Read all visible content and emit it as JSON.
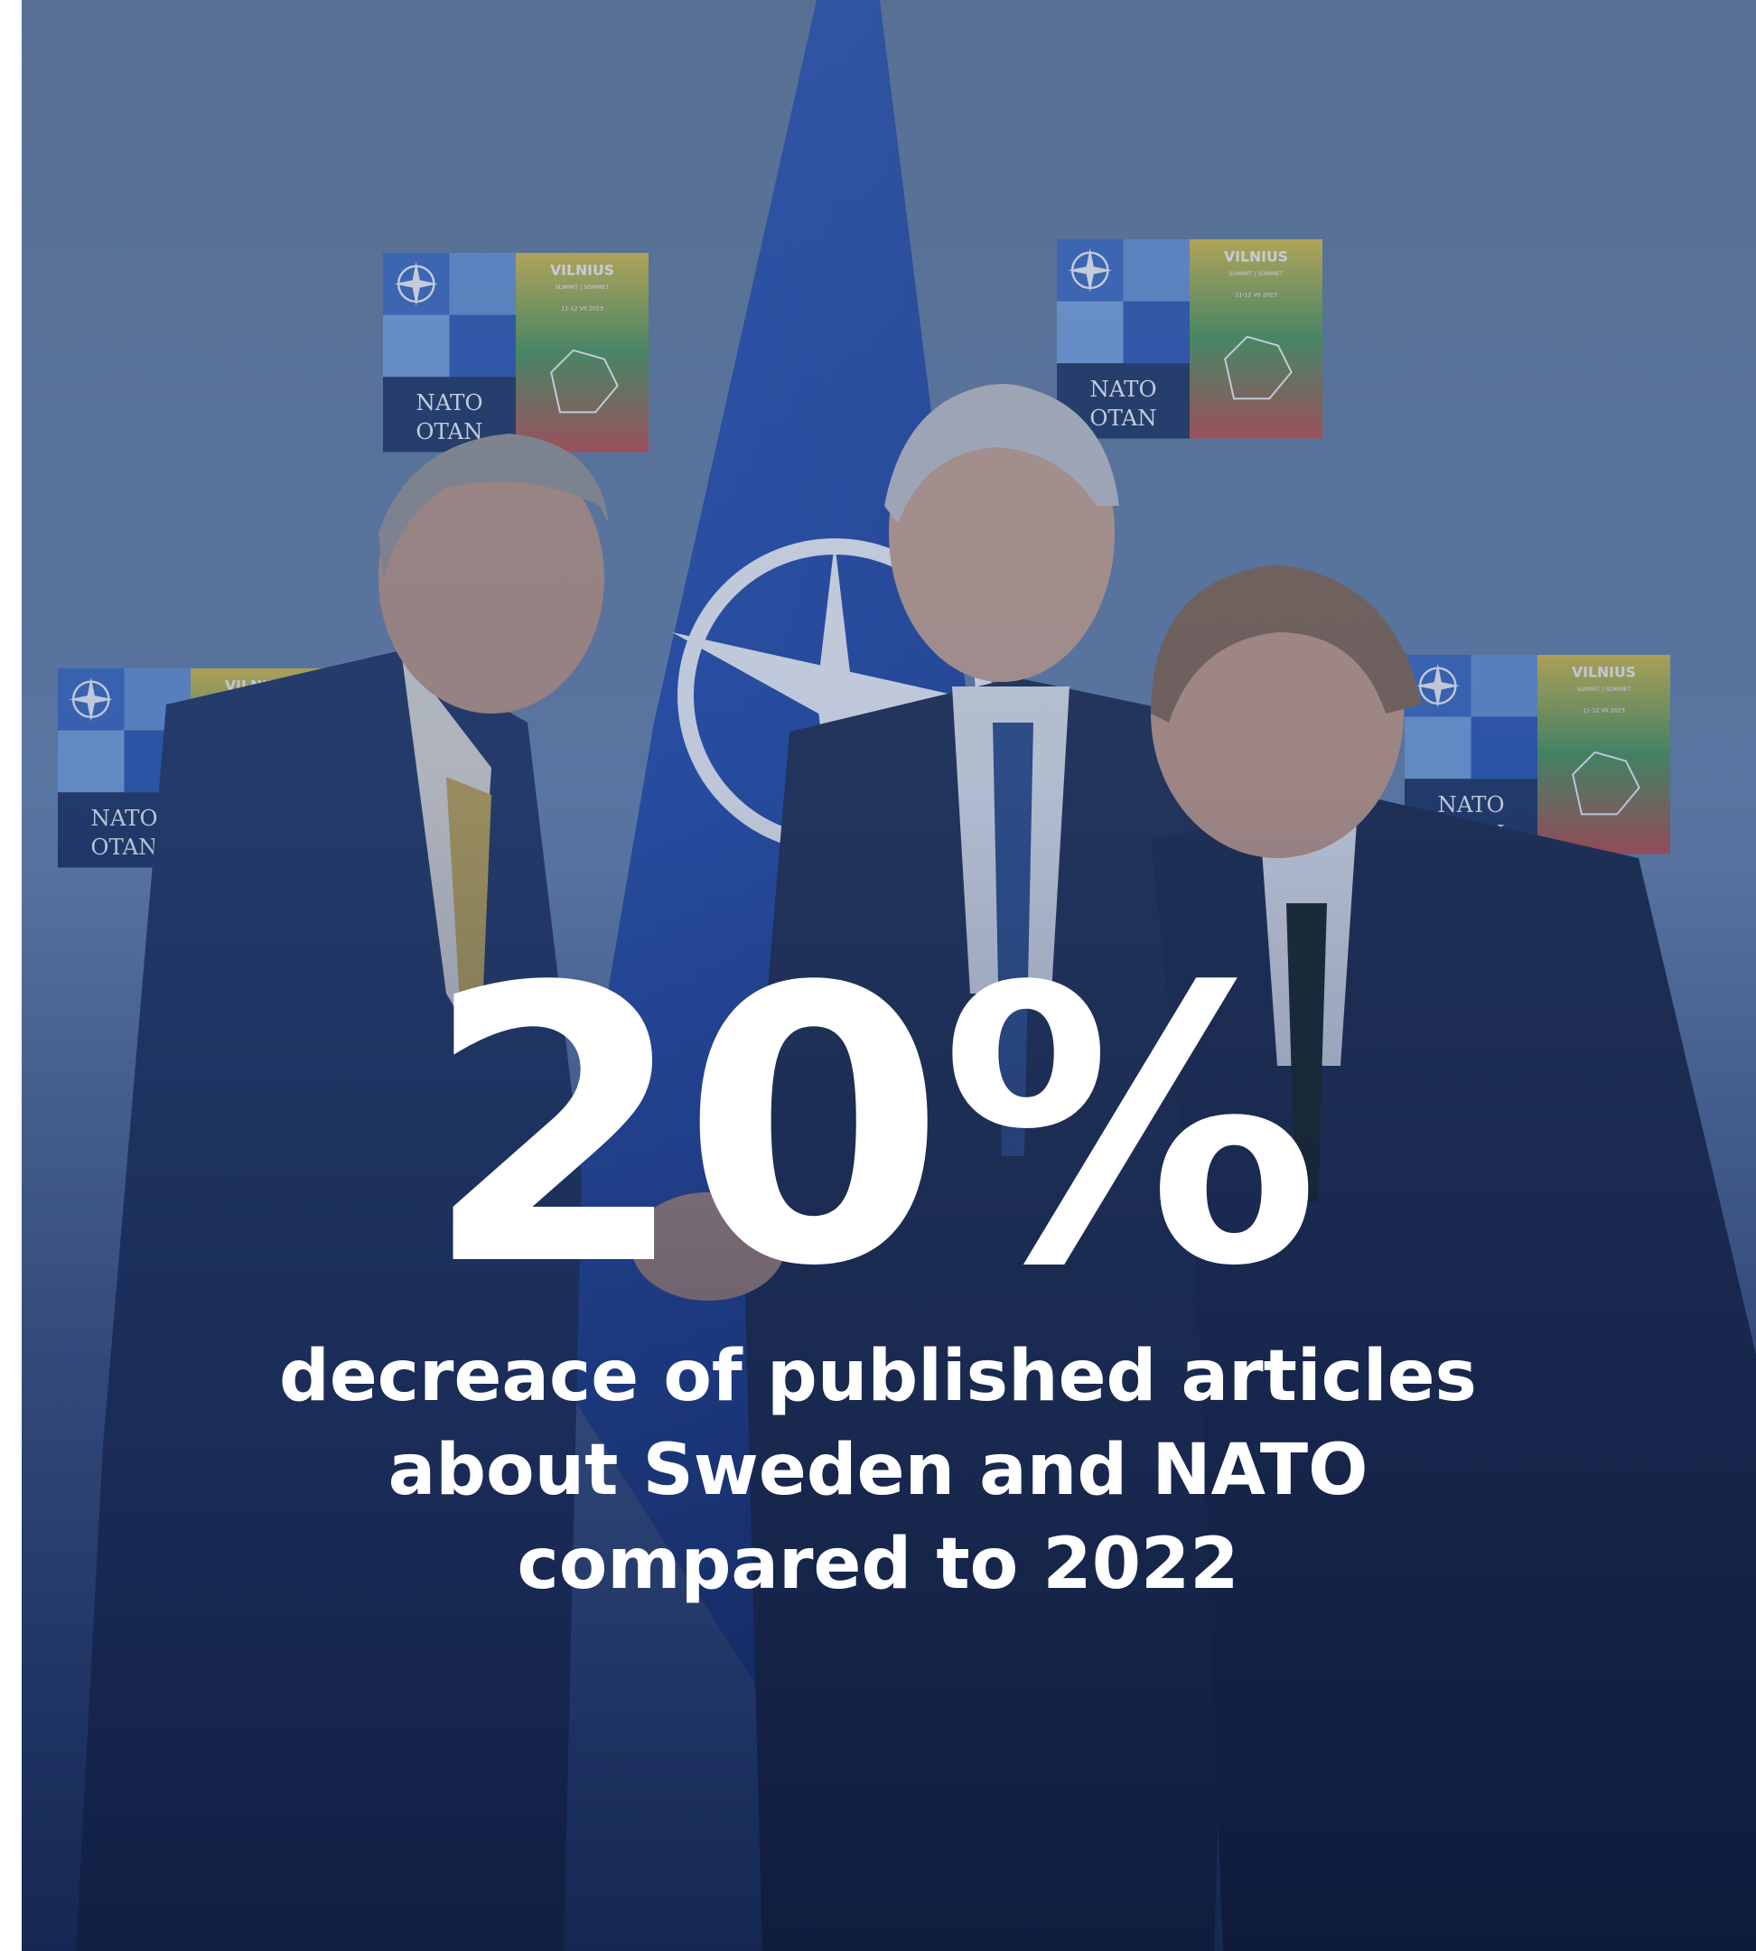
{
  "photo": {
    "description_icon": "nato-summit-photo",
    "backdrop_logo_text": {
      "nato": "NATO",
      "otan": "OTAN",
      "city": "VILNIUS",
      "event": "SUMMIT | SOMMET",
      "dates": "11-12 VII 2023"
    }
  },
  "stat": {
    "value": "20%",
    "caption_lines": [
      "decreace of published articles",
      "about Sweden and NATO",
      "compared to 2022"
    ]
  },
  "colors": {
    "overlay": "#1a2f66",
    "text": "#ffffff",
    "nato_blue": "#1f4aa8"
  }
}
